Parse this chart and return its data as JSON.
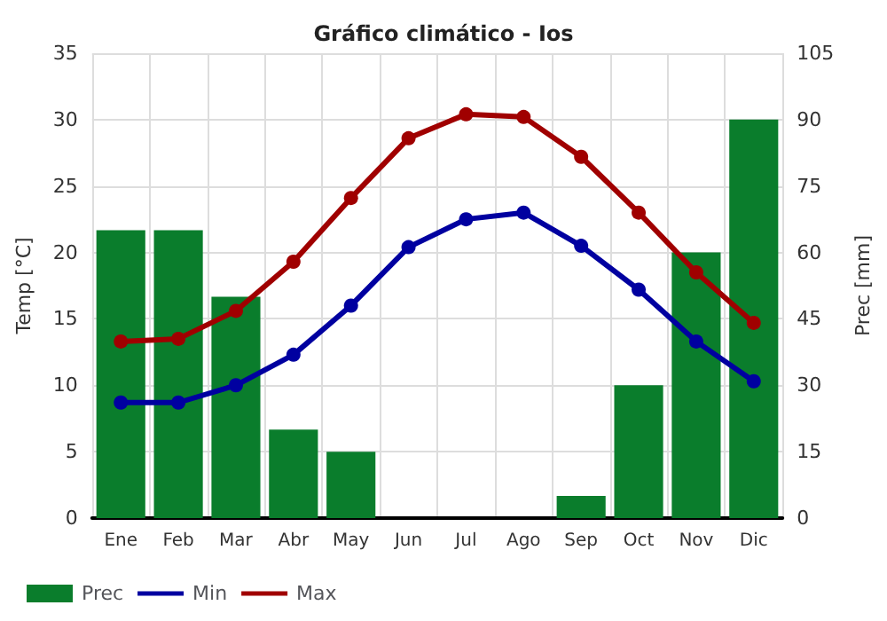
{
  "chart_data": {
    "type": "line",
    "title": "Gráfico climático - Ios",
    "categories": [
      "Ene",
      "Feb",
      "Mar",
      "Abr",
      "May",
      "Jun",
      "Jul",
      "Ago",
      "Sep",
      "Oct",
      "Nov",
      "Dic"
    ],
    "ylabel": "Temp [°C]",
    "y2label": "Prec [mm]",
    "ylim": [
      0,
      35
    ],
    "yticks": [
      0,
      5,
      10,
      15,
      20,
      25,
      30,
      35
    ],
    "y2lim": [
      0,
      105
    ],
    "y2ticks": [
      0,
      15,
      30,
      45,
      60,
      75,
      90,
      105
    ],
    "grid": true,
    "legend": "bottom",
    "marker": "circle",
    "series": [
      {
        "name": "Prec",
        "type": "bar",
        "axis": "y2",
        "color": "#0a7d2c",
        "values": [
          65,
          65,
          50,
          20,
          15,
          0,
          0,
          0,
          5,
          30,
          60,
          90
        ]
      },
      {
        "name": "Min",
        "color": "#0000a0",
        "values": [
          8.7,
          8.7,
          10,
          12.3,
          16,
          20.4,
          22.5,
          23,
          20.5,
          17.2,
          13.3,
          10.3
        ]
      },
      {
        "name": "Max",
        "color": "#a00000",
        "values": [
          13.3,
          13.5,
          15.6,
          19.3,
          24.1,
          28.6,
          30.4,
          30.2,
          27.2,
          23,
          18.5,
          14.7
        ]
      }
    ]
  }
}
